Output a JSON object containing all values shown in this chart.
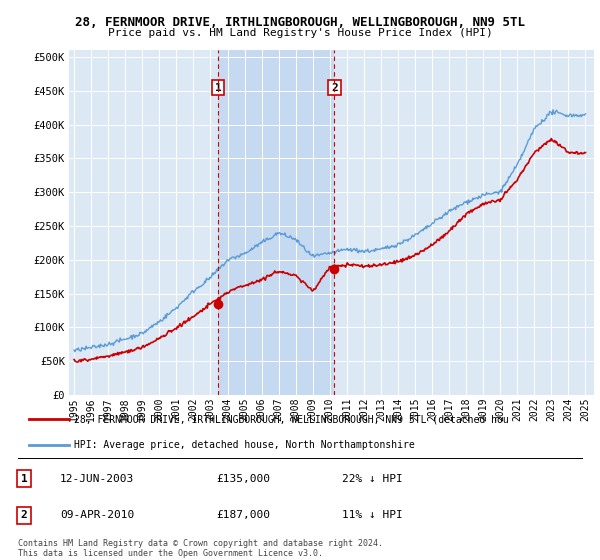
{
  "title": "28, FERNMOOR DRIVE, IRTHLINGBOROUGH, WELLINGBOROUGH, NN9 5TL",
  "subtitle": "Price paid vs. HM Land Registry's House Price Index (HPI)",
  "ylabel_ticks": [
    0,
    50000,
    100000,
    150000,
    200000,
    250000,
    300000,
    350000,
    400000,
    450000,
    500000
  ],
  "ylabel_labels": [
    "£0",
    "£50K",
    "£100K",
    "£150K",
    "£200K",
    "£250K",
    "£300K",
    "£350K",
    "£400K",
    "£450K",
    "£500K"
  ],
  "xlim": [
    1994.7,
    2025.5
  ],
  "ylim": [
    0,
    510000
  ],
  "sale1_x": 2003.44,
  "sale1_y": 135000,
  "sale1_label": "1",
  "sale2_x": 2010.27,
  "sale2_y": 187000,
  "sale2_label": "2",
  "hpi_color": "#5b9bd5",
  "sale_color": "#cc0000",
  "plot_bg_color": "#dce9f5",
  "shade_color": "#c5d9f1",
  "grid_color": "#ffffff",
  "legend_line1": "28, FERNMOOR DRIVE, IRTHLINGBOROUGH, WELLINGBOROUGH, NN9 5TL (detached hou",
  "legend_line2": "HPI: Average price, detached house, North Northamptonshire",
  "table_row1": [
    "1",
    "12-JUN-2003",
    "£135,000",
    "22% ↓ HPI"
  ],
  "table_row2": [
    "2",
    "09-APR-2010",
    "£187,000",
    "11% ↓ HPI"
  ],
  "footer1": "Contains HM Land Registry data © Crown copyright and database right 2024.",
  "footer2": "This data is licensed under the Open Government Licence v3.0.",
  "hpi_anchors_x": [
    1995,
    1996,
    1997,
    1998,
    1999,
    2000,
    2001,
    2002,
    2003,
    2004,
    2005,
    2006,
    2007,
    2008,
    2009,
    2010,
    2011,
    2012,
    2013,
    2014,
    2015,
    2016,
    2017,
    2018,
    2019,
    2020,
    2021,
    2022,
    2023,
    2024,
    2025
  ],
  "hpi_anchors_y": [
    65000,
    70000,
    76000,
    84000,
    92000,
    110000,
    130000,
    155000,
    175000,
    200000,
    210000,
    225000,
    240000,
    230000,
    205000,
    210000,
    215000,
    212000,
    215000,
    222000,
    235000,
    252000,
    270000,
    285000,
    295000,
    300000,
    340000,
    395000,
    420000,
    415000,
    415000
  ],
  "red_anchors_x": [
    1995,
    1996,
    1997,
    1998,
    1999,
    2000,
    2001,
    2002,
    2003,
    2004,
    2005,
    2006,
    2007,
    2008,
    2009,
    2010,
    2011,
    2012,
    2013,
    2014,
    2015,
    2016,
    2017,
    2018,
    2019,
    2020,
    2021,
    2022,
    2023,
    2024,
    2025
  ],
  "red_anchors_y": [
    50000,
    53000,
    57000,
    63000,
    70000,
    83000,
    99000,
    115000,
    135000,
    152000,
    162000,
    170000,
    182000,
    175000,
    152000,
    187000,
    190000,
    188000,
    190000,
    195000,
    205000,
    220000,
    240000,
    265000,
    280000,
    285000,
    315000,
    355000,
    375000,
    355000,
    355000
  ]
}
